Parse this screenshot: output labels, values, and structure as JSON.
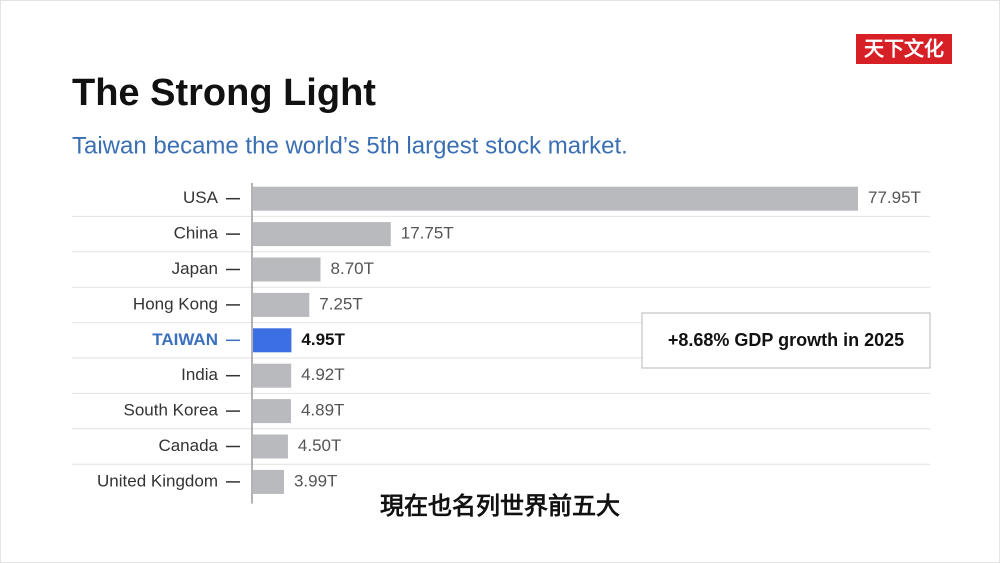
{
  "logo": "天下文化",
  "caption": "現在也名列世界前五大",
  "chart_data": {
    "type": "bar",
    "orientation": "horizontal",
    "title": "The Strong Light",
    "subtitle": "Taiwan became the world’s 5th largest stock market.",
    "categories": [
      "USA",
      "China",
      "Japan",
      "Hong Kong",
      "TAIWAN",
      "India",
      "South Korea",
      "Canada",
      "United Kingdom"
    ],
    "values": [
      77.95,
      17.75,
      8.7,
      7.25,
      4.95,
      4.92,
      4.89,
      4.5,
      3.99
    ],
    "value_labels": [
      "77.95T",
      "17.75T",
      "8.70T",
      "7.25T",
      "4.95T",
      "4.92T",
      "4.89T",
      "4.50T",
      "3.99T"
    ],
    "colors": [
      "#b9babe",
      "#b9babe",
      "#b9babe",
      "#b9babe",
      "#3b6fe3",
      "#b9babe",
      "#b9babe",
      "#b9babe",
      "#b9babe"
    ],
    "highlight": "TAIWAN",
    "highlight_color": "#3b6fc0",
    "annotation": "+8.68% GDP growth in 2025"
  }
}
